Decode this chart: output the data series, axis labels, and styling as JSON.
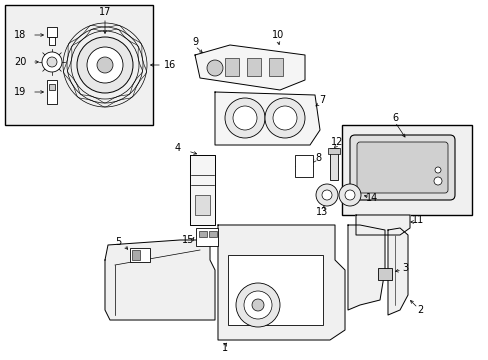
{
  "bg_color": "#ffffff",
  "line_color": "#000000",
  "label_color": "#000000",
  "fig_width": 4.89,
  "fig_height": 3.6,
  "dpi": 100
}
